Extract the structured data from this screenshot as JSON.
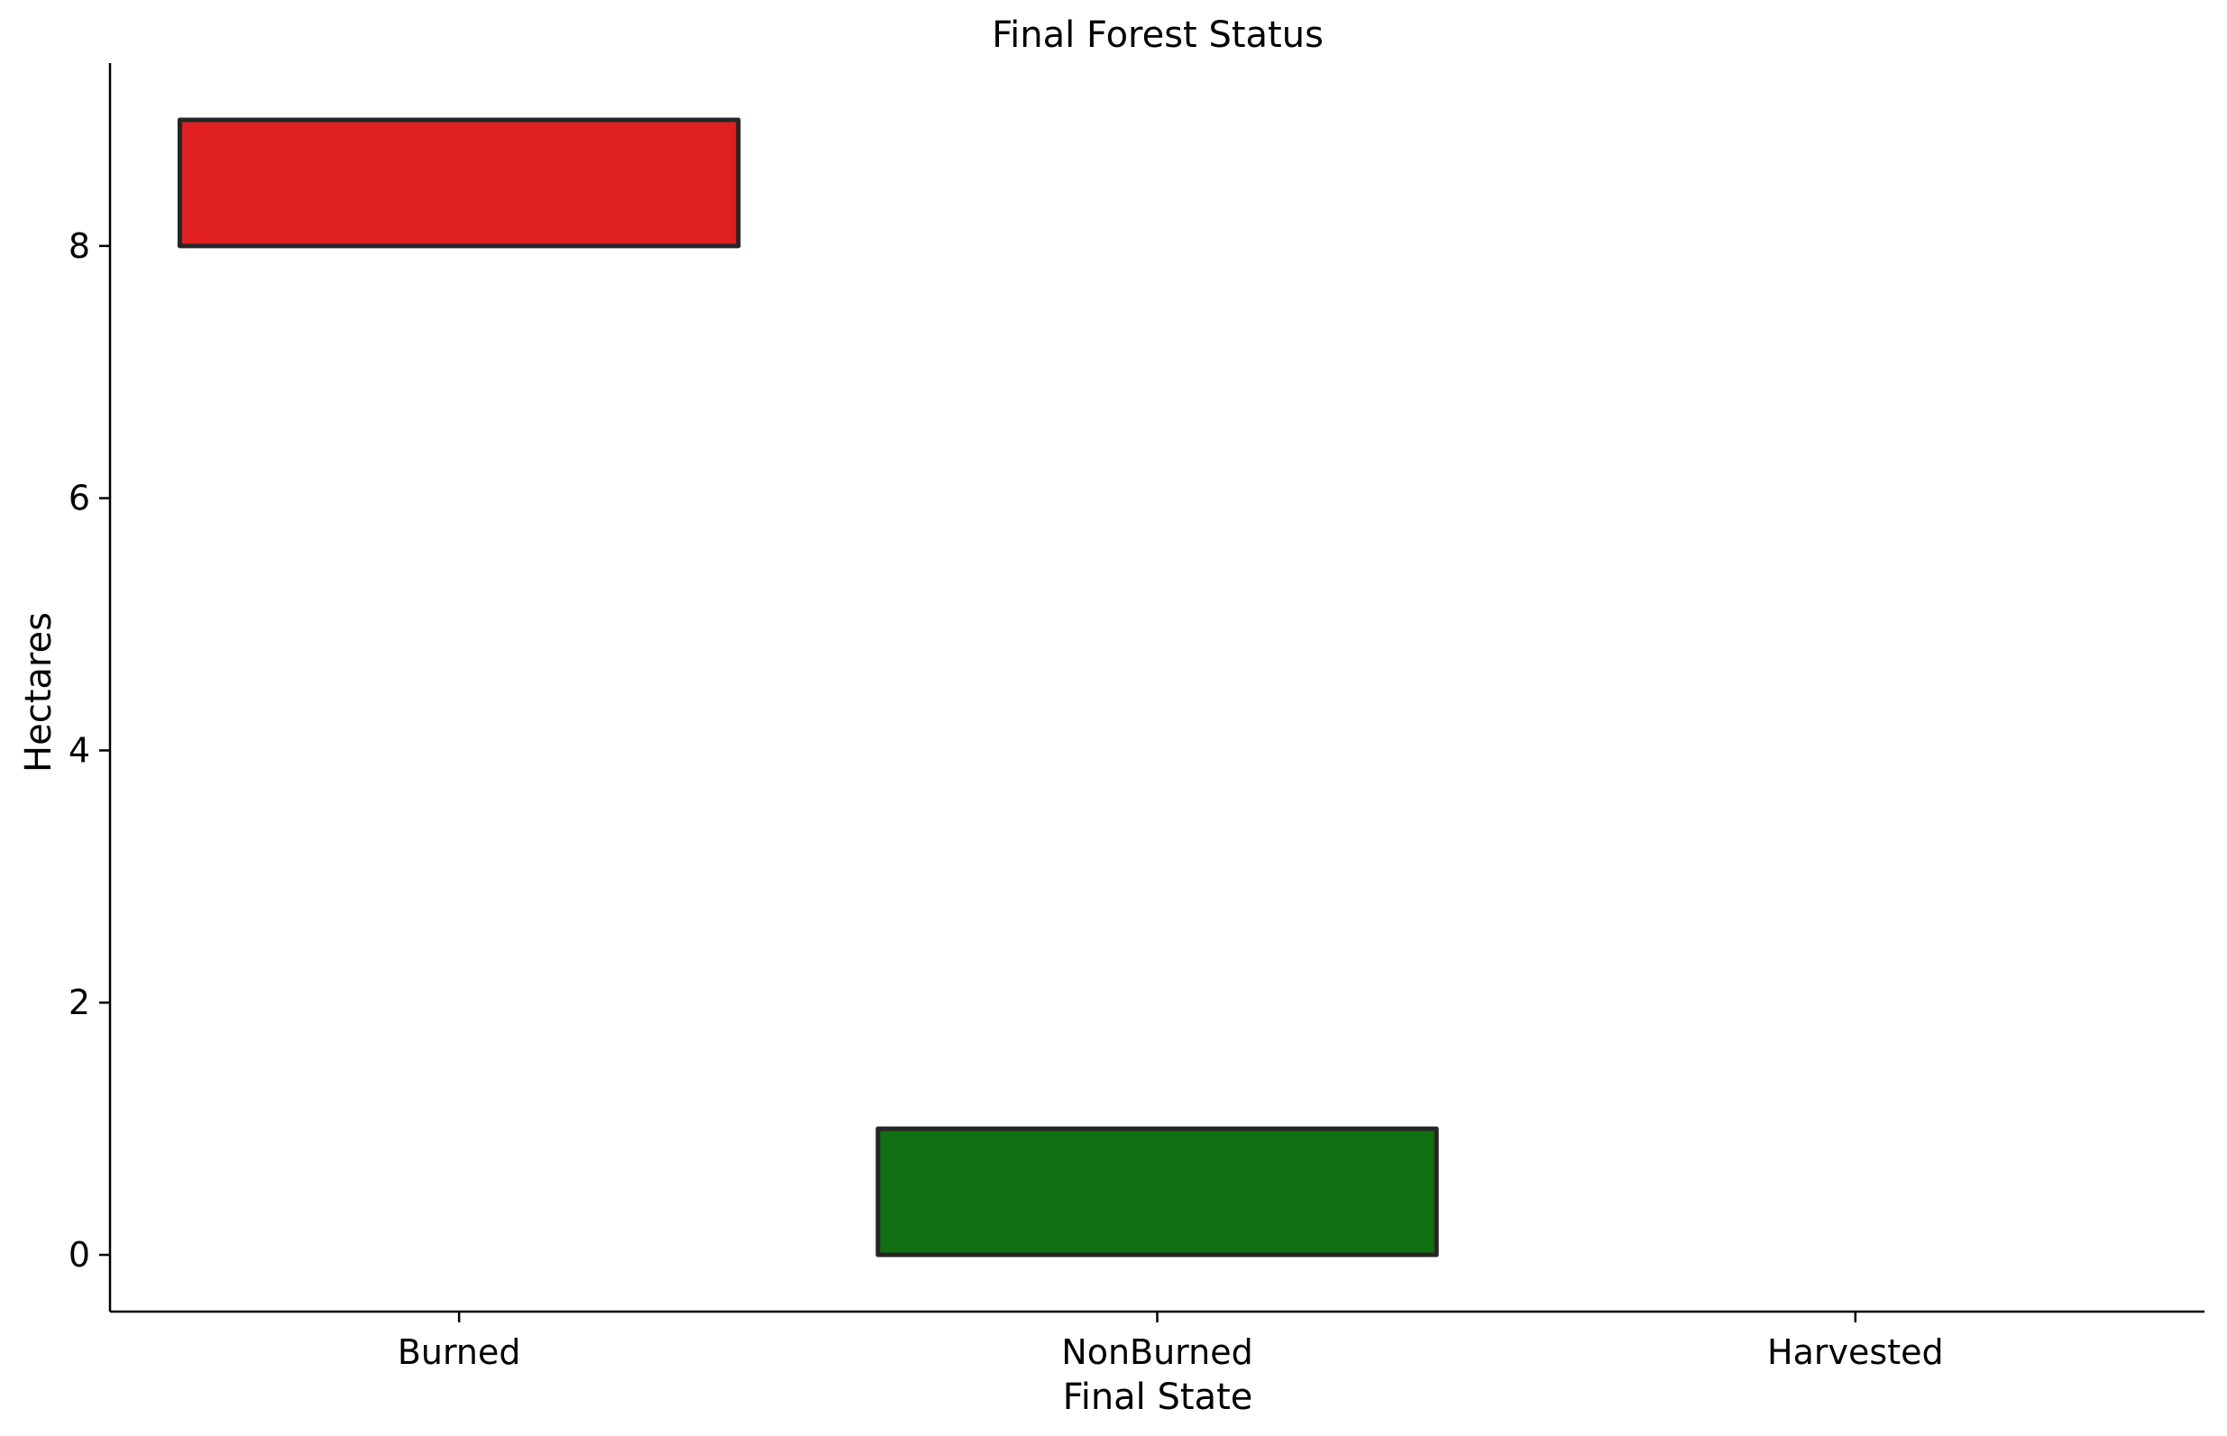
{
  "chart_data": {
    "type": "bar",
    "title": "Final Forest Status",
    "xlabel": "Final State",
    "ylabel": "Hectares",
    "categories": [
      "Burned",
      "NonBurned",
      "Harvested"
    ],
    "series": [
      {
        "low": [
          8,
          0,
          0
        ],
        "high": [
          9,
          1,
          0
        ]
      }
    ],
    "colors": [
      "#e02020",
      "#117011",
      "#262626"
    ],
    "edge_color": "#262626",
    "ylim": [
      -0.45,
      9.45
    ],
    "yticks": [
      0,
      2,
      4,
      6,
      8
    ],
    "ytick_labels": [
      "0",
      "2",
      "4",
      "6",
      "8"
    ],
    "grid": false,
    "legend": "none"
  }
}
